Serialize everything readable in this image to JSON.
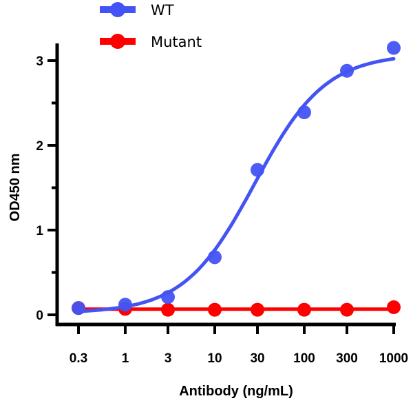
{
  "chart_data": {
    "type": "line",
    "title": "",
    "xlabel": "Antibody (ng/mL)",
    "ylabel": "OD450 nm",
    "xscale": "log",
    "x": [
      0.3,
      1,
      3,
      10,
      30,
      100,
      300,
      1000
    ],
    "xtick_labels": [
      "0.3",
      "1",
      "3",
      "10",
      "30",
      "100",
      "300",
      "1000"
    ],
    "ylim": [
      0,
      3.3
    ],
    "yticks": [
      0,
      1,
      2,
      3
    ],
    "ytick_labels": [
      "0",
      "1",
      "2",
      "3"
    ],
    "grid": false,
    "legend_position": "top",
    "series": [
      {
        "name": "WT",
        "color": "#4353f4",
        "values": [
          0.08,
          0.12,
          0.21,
          0.68,
          1.71,
          2.39,
          2.88,
          3.15
        ],
        "line": "sigmoidal fit"
      },
      {
        "name": "Mutant",
        "color": "#ff0000",
        "values": [
          0.08,
          0.07,
          0.06,
          0.06,
          0.06,
          0.06,
          0.06,
          0.09
        ],
        "line": "fit"
      }
    ]
  }
}
